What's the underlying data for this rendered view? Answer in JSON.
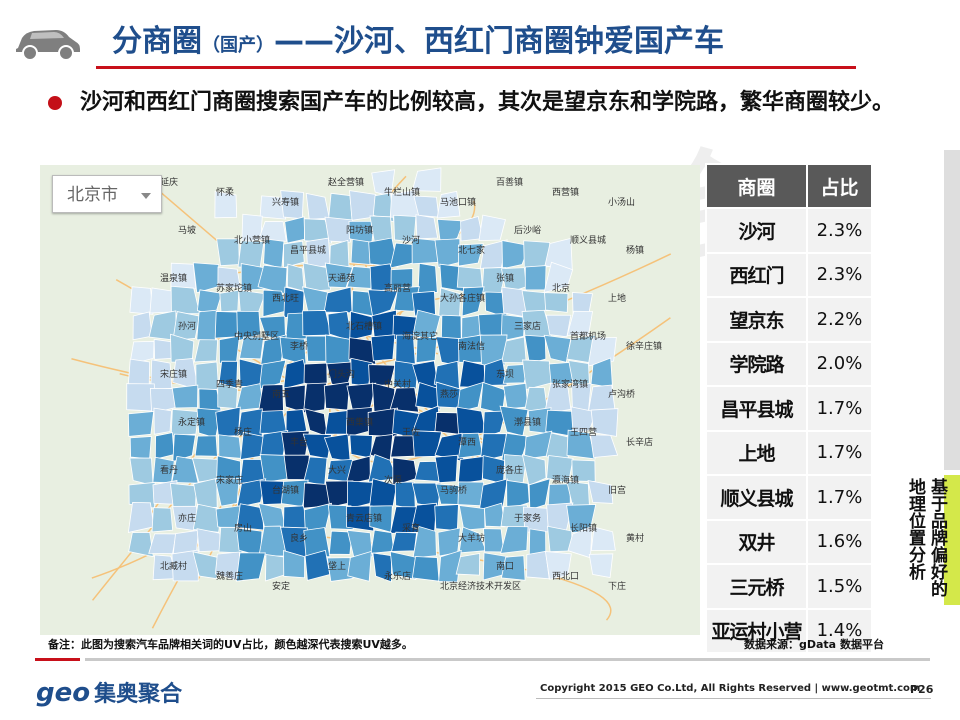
{
  "header": {
    "title_main": "分商圈",
    "title_sub": "（国产）",
    "title_rest": "——沙河、西红门商圈钟爱国产车"
  },
  "bullet_text": "沙河和西红门商圈搜索国产车的比例较高，其次是望京东和学院路，繁华商圈较少。",
  "map": {
    "search_value": "北京市",
    "labels": [
      "延庆",
      "怀柔",
      "兴寿镇",
      "赵全营镇",
      "牛栏山镇",
      "马池口镇",
      "百善镇",
      "西营镇",
      "小汤山",
      "马坡",
      "北小营镇",
      "昌平县城",
      "阳坊镇",
      "沙河",
      "北七家",
      "后沙峪",
      "顺义县城",
      "杨镇",
      "温泉镇",
      "苏家坨镇",
      "西北旺",
      "天通苑",
      "高丽营",
      "大孙各庄镇",
      "张镇",
      "北京",
      "上地",
      "孙河",
      "中央别墅区",
      "李桥",
      "北石槽镇",
      "海淀其它",
      "南法信",
      "三家店",
      "首都机场",
      "徐辛庄镇",
      "宋庄镇",
      "四季青",
      "南五",
      "门头沟",
      "中关村",
      "燕莎",
      "东坝",
      "张家湾镇",
      "卢沟桥",
      "永定镇",
      "杨庄",
      "丰台",
      "西集镇",
      "王佐",
      "潭西",
      "漷县镇",
      "王四营",
      "长辛店",
      "看丹",
      "宋家庄",
      "台湖镇",
      "大兴",
      "次渠",
      "马驹桥",
      "庞各庄",
      "瀛海镇",
      "旧宫",
      "亦庄",
      "房山",
      "良乡",
      "青云店镇",
      "采育",
      "大羊坊",
      "于家务",
      "长阳镇",
      "黄村",
      "北臧村",
      "魏善庄",
      "安定",
      "垡上",
      "永乐店",
      "北京经济技术开发区",
      "南口",
      "西北口",
      "下庄"
    ],
    "legend_note": "颜色越深代表搜索UV越多"
  },
  "chart_data": {
    "type": "table",
    "title": "",
    "columns": [
      "商圈",
      "占比"
    ],
    "rows": [
      {
        "name": "沙河",
        "value": "2.3%"
      },
      {
        "name": "西红门",
        "value": "2.3%"
      },
      {
        "name": "望京东",
        "value": "2.2%"
      },
      {
        "name": "学院路",
        "value": "2.0%"
      },
      {
        "name": "昌平县城",
        "value": "1.7%"
      },
      {
        "name": "上地",
        "value": "1.7%"
      },
      {
        "name": "顺义县城",
        "value": "1.7%"
      },
      {
        "name": "双井",
        "value": "1.6%"
      },
      {
        "name": "三元桥",
        "value": "1.5%"
      },
      {
        "name": "亚运村小营",
        "value": "1.4%"
      }
    ]
  },
  "side_label": "基于品牌偏好的地理位置分析",
  "note": "备注：此图为搜索汽车品牌相关词的UV占比，颜色越深代表搜索UV越多。",
  "source": "数据来源：gData 数据平台",
  "footer": {
    "logo_en": "geo",
    "logo_cn": "集奥聚合",
    "copyright": "Copyright 2015 GEO Co.Ltd, All Rights Reserved  |  www.geotmt.com",
    "page_number": "P26"
  },
  "colors": {
    "accent_red": "#c8101a",
    "title_blue": "#1f4e8c",
    "dark_blue": "#08306b",
    "mid_blue": "#4292c6",
    "light_blue": "#c6dbef",
    "side_green": "#d4e84a"
  }
}
